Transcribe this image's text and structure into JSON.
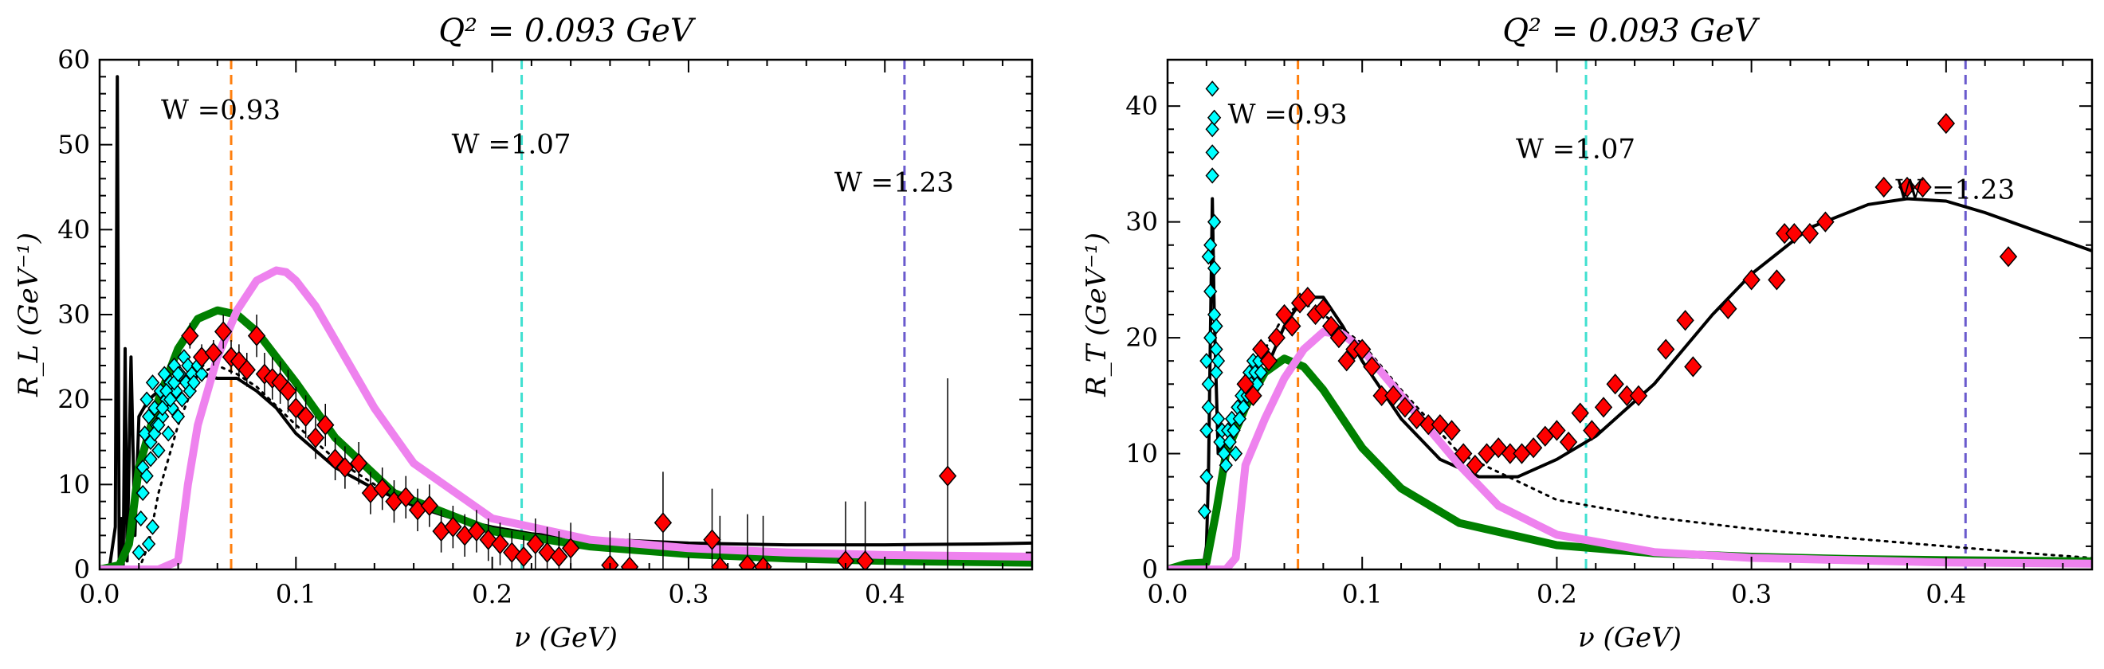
{
  "chart_data": [
    {
      "type": "scatter",
      "title": "Q² = 0.093 GeV",
      "xlabel": "ν (GeV)",
      "ylabel": "R_L (GeV⁻¹)",
      "xlim": [
        0,
        0.475
      ],
      "ylim": [
        0,
        60
      ],
      "xticks": [
        0.0,
        0.1,
        0.2,
        0.3,
        0.4
      ],
      "xtick_labels": [
        "0.0",
        "0.1",
        "0.2",
        "0.3",
        "0.4"
      ],
      "yticks": [
        0,
        10,
        20,
        30,
        40,
        50,
        60
      ],
      "ytick_labels": [
        "0",
        "10",
        "20",
        "30",
        "40",
        "50",
        "60"
      ],
      "grid": false,
      "vlines": [
        {
          "x": 0.067,
          "label": "W =0.93",
          "label_y": 53,
          "color": "#ff7f0e"
        },
        {
          "x": 0.215,
          "label": "W =1.07",
          "label_y": 49,
          "color": "#40e0d0"
        },
        {
          "x": 0.41,
          "label": "W =1.23",
          "label_y": 44.5,
          "color": "#6a5acd"
        }
      ],
      "series": [
        {
          "kind": "line",
          "style": "solid",
          "color": "#000000",
          "width": 4,
          "x": [
            0.0,
            0.005,
            0.008,
            0.009,
            0.01,
            0.011,
            0.012,
            0.013,
            0.014,
            0.016,
            0.018,
            0.02,
            0.025,
            0.03,
            0.04,
            0.05,
            0.06,
            0.07,
            0.08,
            0.09,
            0.1,
            0.12,
            0.14,
            0.16,
            0.18,
            0.2,
            0.22,
            0.25,
            0.3,
            0.35,
            0.4,
            0.45,
            0.475
          ],
          "y": [
            0,
            0.2,
            5,
            58,
            0.5,
            6,
            0.5,
            26,
            1,
            25,
            4,
            18,
            20,
            21,
            22.5,
            23,
            22.5,
            22.5,
            21,
            19,
            16,
            12,
            9.5,
            7.5,
            6,
            5,
            4.2,
            3.6,
            3.1,
            2.9,
            2.9,
            3.0,
            3.1
          ]
        },
        {
          "kind": "line",
          "style": "dotted",
          "color": "#000000",
          "width": 3,
          "x": [
            0.02,
            0.025,
            0.03,
            0.04,
            0.05,
            0.06,
            0.07,
            0.08,
            0.1,
            0.12,
            0.15,
            0.2,
            0.25,
            0.3,
            0.35,
            0.4,
            0.45,
            0.475
          ],
          "y": [
            0,
            3,
            9,
            17,
            23,
            24,
            23,
            21.5,
            17,
            13,
            8.5,
            4.5,
            2.7,
            1.7,
            1.1,
            0.8,
            0.6,
            0.5
          ]
        },
        {
          "kind": "line",
          "style": "solid",
          "color": "#008000",
          "width": 10,
          "x": [
            0.0,
            0.01,
            0.015,
            0.02,
            0.03,
            0.04,
            0.05,
            0.06,
            0.07,
            0.08,
            0.09,
            0.1,
            0.12,
            0.15,
            0.2,
            0.25,
            0.3,
            0.35,
            0.4,
            0.475
          ],
          "y": [
            0,
            0.5,
            3,
            12,
            20,
            26,
            29.5,
            30.5,
            30,
            28,
            25,
            22,
            15.5,
            9,
            4.5,
            2.7,
            1.8,
            1.3,
            1.0,
            0.8
          ]
        },
        {
          "kind": "line",
          "style": "solid",
          "color": "#ee82ee",
          "width": 10,
          "x": [
            0.0,
            0.03,
            0.04,
            0.045,
            0.05,
            0.06,
            0.07,
            0.08,
            0.09,
            0.095,
            0.1,
            0.11,
            0.12,
            0.14,
            0.16,
            0.2,
            0.25,
            0.3,
            0.35,
            0.4,
            0.475
          ],
          "y": [
            0,
            0,
            1,
            10,
            17,
            25,
            30.5,
            34,
            35.2,
            35,
            34,
            31,
            27,
            19,
            12.5,
            6,
            3.5,
            2.5,
            2.0,
            1.7,
            1.5
          ]
        },
        {
          "kind": "points",
          "marker": "diamond",
          "color": "#00ffff",
          "size": 14,
          "x": [
            0.02,
            0.021,
            0.022,
            0.023,
            0.024,
            0.025,
            0.026,
            0.027,
            0.028,
            0.029,
            0.03,
            0.031,
            0.032,
            0.033,
            0.034,
            0.035,
            0.036,
            0.037,
            0.038,
            0.039,
            0.04,
            0.041,
            0.042,
            0.043,
            0.044,
            0.045,
            0.046,
            0.047,
            0.048,
            0.05,
            0.052,
            0.022,
            0.024,
            0.026,
            0.028,
            0.03,
            0.032,
            0.034,
            0.036,
            0.038,
            0.04,
            0.025,
            0.027
          ],
          "y": [
            2,
            6,
            12,
            16,
            20,
            18,
            15,
            22,
            19,
            17,
            14,
            21,
            18,
            23,
            20,
            16,
            22,
            19,
            24,
            21,
            18,
            23,
            20,
            25,
            22,
            24,
            21,
            23,
            22,
            24,
            23,
            9,
            11,
            13,
            16,
            17,
            19,
            21,
            20,
            22,
            23,
            3,
            5
          ]
        },
        {
          "kind": "points",
          "marker": "diamond",
          "color": "#ff0000",
          "size": 20,
          "x": [
            0.046,
            0.052,
            0.058,
            0.063,
            0.067,
            0.071,
            0.075,
            0.08,
            0.084,
            0.088,
            0.092,
            0.096,
            0.1,
            0.105,
            0.11,
            0.115,
            0.12,
            0.125,
            0.132,
            0.138,
            0.144,
            0.15,
            0.156,
            0.162,
            0.168,
            0.174,
            0.18,
            0.186,
            0.192,
            0.198,
            0.204,
            0.21,
            0.216,
            0.222,
            0.228,
            0.234,
            0.24,
            0.26,
            0.27,
            0.287,
            0.312,
            0.316,
            0.33,
            0.338,
            0.38,
            0.39,
            0.432
          ],
          "y": [
            27.5,
            25,
            25.5,
            28,
            25,
            24.5,
            23.5,
            27.5,
            23,
            22.5,
            22,
            21,
            19,
            18,
            15.5,
            17,
            13,
            12,
            12.5,
            9,
            9.5,
            8,
            8.5,
            7,
            7.5,
            4.5,
            5,
            4,
            4.5,
            3.5,
            3,
            2,
            1.5,
            3,
            2,
            1.5,
            2.5,
            0.5,
            0.3,
            5.5,
            3.5,
            0.3,
            0.5,
            0.3,
            1,
            1,
            11
          ],
          "yerr": [
            1.5,
            1.5,
            1.5,
            2,
            2,
            2,
            2,
            2.5,
            2.5,
            2.5,
            2.5,
            2.5,
            2.5,
            2.5,
            2.5,
            2.5,
            2.5,
            2.5,
            2.5,
            2.5,
            2.5,
            2.5,
            2.5,
            2.5,
            2.5,
            2.5,
            2.5,
            2.5,
            2.5,
            2.5,
            2.5,
            2.5,
            2.5,
            3,
            3,
            3,
            3,
            4,
            4,
            6,
            6,
            6,
            6,
            6,
            7,
            7,
            11.5
          ]
        }
      ]
    },
    {
      "type": "scatter",
      "title": "Q² = 0.093 GeV",
      "xlabel": "ν (GeV)",
      "ylabel": "R_T (GeV⁻¹)",
      "xlim": [
        0,
        0.475
      ],
      "ylim": [
        0,
        44
      ],
      "xticks": [
        0.0,
        0.1,
        0.2,
        0.3,
        0.4
      ],
      "xtick_labels": [
        "0.0",
        "0.1",
        "0.2",
        "0.3",
        "0.4"
      ],
      "yticks": [
        0,
        10,
        20,
        30,
        40
      ],
      "ytick_labels": [
        "0",
        "10",
        "20",
        "30",
        "40"
      ],
      "grid": false,
      "vlines": [
        {
          "x": 0.067,
          "label": "W =0.93",
          "label_y": 38.5,
          "color": "#ff7f0e"
        },
        {
          "x": 0.215,
          "label": "W =1.07",
          "label_y": 35.5,
          "color": "#40e0d0"
        },
        {
          "x": 0.41,
          "label": "W =1.23",
          "label_y": 32,
          "color": "#6a5acd"
        }
      ],
      "series": [
        {
          "kind": "line",
          "style": "solid",
          "color": "#000000",
          "width": 4,
          "x": [
            0.018,
            0.02,
            0.021,
            0.022,
            0.023,
            0.024,
            0.026,
            0.03,
            0.04,
            0.05,
            0.06,
            0.07,
            0.08,
            0.09,
            0.1,
            0.12,
            0.14,
            0.16,
            0.18,
            0.2,
            0.22,
            0.25,
            0.28,
            0.3,
            0.33,
            0.36,
            0.38,
            0.4,
            0.42,
            0.45,
            0.475
          ],
          "y": [
            0,
            2,
            8,
            20,
            32,
            22,
            10,
            11,
            14,
            17,
            21,
            23.5,
            23.5,
            21,
            18,
            13,
            9.5,
            8,
            8,
            9.5,
            11.5,
            16,
            22,
            25.5,
            29.5,
            31.5,
            32,
            31.8,
            30.8,
            29,
            27.5
          ]
        },
        {
          "kind": "line",
          "style": "dotted",
          "color": "#000000",
          "width": 3,
          "x": [
            0.02,
            0.025,
            0.03,
            0.04,
            0.05,
            0.06,
            0.07,
            0.08,
            0.1,
            0.12,
            0.15,
            0.2,
            0.25,
            0.3,
            0.35,
            0.4,
            0.45,
            0.475
          ],
          "y": [
            0,
            4,
            10,
            15,
            19,
            22,
            23,
            22,
            19.5,
            15.5,
            10,
            6,
            4.5,
            3.5,
            2.7,
            2.0,
            1.3,
            1.0
          ]
        },
        {
          "kind": "line",
          "style": "solid",
          "color": "#008000",
          "width": 10,
          "x": [
            0.0,
            0.01,
            0.02,
            0.025,
            0.03,
            0.04,
            0.05,
            0.06,
            0.07,
            0.08,
            0.09,
            0.1,
            0.12,
            0.15,
            0.2,
            0.25,
            0.3,
            0.35,
            0.4,
            0.475
          ],
          "y": [
            0,
            0.5,
            0.6,
            5,
            10,
            14,
            17,
            18.2,
            17.5,
            15.5,
            13,
            10.5,
            7,
            4,
            2.1,
            1.4,
            1.1,
            0.9,
            0.8,
            0.7
          ]
        },
        {
          "kind": "line",
          "style": "solid",
          "color": "#ee82ee",
          "width": 10,
          "x": [
            0.0,
            0.03,
            0.035,
            0.04,
            0.05,
            0.06,
            0.07,
            0.08,
            0.09,
            0.1,
            0.11,
            0.13,
            0.15,
            0.17,
            0.2,
            0.25,
            0.3,
            0.35,
            0.4,
            0.475
          ],
          "y": [
            0,
            0,
            1,
            9,
            13,
            16.5,
            19,
            20.5,
            20.3,
            19,
            17,
            13,
            9,
            5.5,
            3,
            1.5,
            1.0,
            0.8,
            0.6,
            0.5
          ]
        },
        {
          "kind": "points",
          "marker": "diamond",
          "color": "#00ffff",
          "size": 14,
          "x": [
            0.019,
            0.02,
            0.02,
            0.021,
            0.021,
            0.022,
            0.022,
            0.022,
            0.023,
            0.023,
            0.023,
            0.024,
            0.024,
            0.024,
            0.025,
            0.025,
            0.026,
            0.027,
            0.028,
            0.029,
            0.03,
            0.031,
            0.032,
            0.033,
            0.034,
            0.035,
            0.036,
            0.037,
            0.038,
            0.039,
            0.04,
            0.041,
            0.042,
            0.043,
            0.044,
            0.045,
            0.046,
            0.047,
            0.048,
            0.02,
            0.021,
            0.023,
            0.024,
            0.025,
            0.026
          ],
          "y": [
            5,
            8,
            12,
            14,
            16,
            20,
            24,
            28,
            38,
            41.5,
            36,
            30,
            26,
            22,
            19,
            17,
            13,
            11,
            12,
            10,
            9,
            12,
            11,
            13,
            12,
            10,
            14,
            13,
            15,
            14,
            16,
            15,
            17,
            16,
            18,
            17,
            16,
            18,
            17,
            18,
            27,
            34,
            39,
            21,
            18
          ]
        },
        {
          "kind": "points",
          "marker": "diamond",
          "color": "#ff0000",
          "size": 20,
          "x": [
            0.04,
            0.044,
            0.048,
            0.052,
            0.056,
            0.06,
            0.064,
            0.068,
            0.072,
            0.076,
            0.08,
            0.084,
            0.088,
            0.092,
            0.096,
            0.1,
            0.105,
            0.11,
            0.116,
            0.122,
            0.128,
            0.134,
            0.14,
            0.146,
            0.152,
            0.158,
            0.164,
            0.17,
            0.176,
            0.182,
            0.188,
            0.194,
            0.2,
            0.206,
            0.212,
            0.218,
            0.224,
            0.23,
            0.236,
            0.242,
            0.256,
            0.266,
            0.27,
            0.288,
            0.3,
            0.313,
            0.317,
            0.322,
            0.33,
            0.338,
            0.368,
            0.38,
            0.388,
            0.4,
            0.432
          ],
          "y": [
            16,
            15,
            19,
            18,
            20,
            22,
            21,
            23,
            23.5,
            22,
            22.5,
            21,
            20,
            18,
            19,
            19,
            17.5,
            15,
            15,
            14,
            13,
            12.5,
            12.5,
            12,
            10,
            9,
            10,
            10.5,
            10,
            10,
            10.5,
            11.5,
            12,
            11,
            13.5,
            12,
            14,
            16,
            15,
            15,
            19,
            21.5,
            17.5,
            22.5,
            25,
            25,
            29,
            29,
            29,
            30,
            33,
            33,
            33,
            38.5,
            27
          ]
        }
      ]
    }
  ]
}
